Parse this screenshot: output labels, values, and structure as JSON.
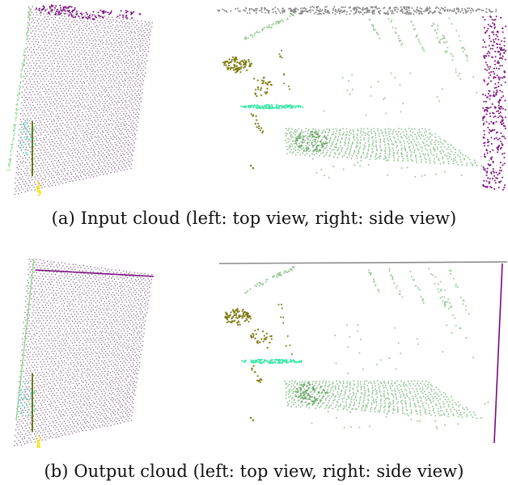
{
  "figure": {
    "captions": [
      "(a) Input cloud (left: top view, right: side view)",
      "(b) Output cloud (left: top view, right: side view)"
    ]
  },
  "colors": {
    "body": "#8a6a8c",
    "roof": "#7a0a7e",
    "wall": "#8fdc8f",
    "ground": "#9bc79b",
    "ground_dark": "#6fa86f",
    "olive": "#7c7a10",
    "mint": "#3de8a8",
    "gray": "#8a8a8a",
    "pole": "#6b7a12",
    "yellow": "#f2e61a",
    "teal": "#7fd6c8"
  }
}
